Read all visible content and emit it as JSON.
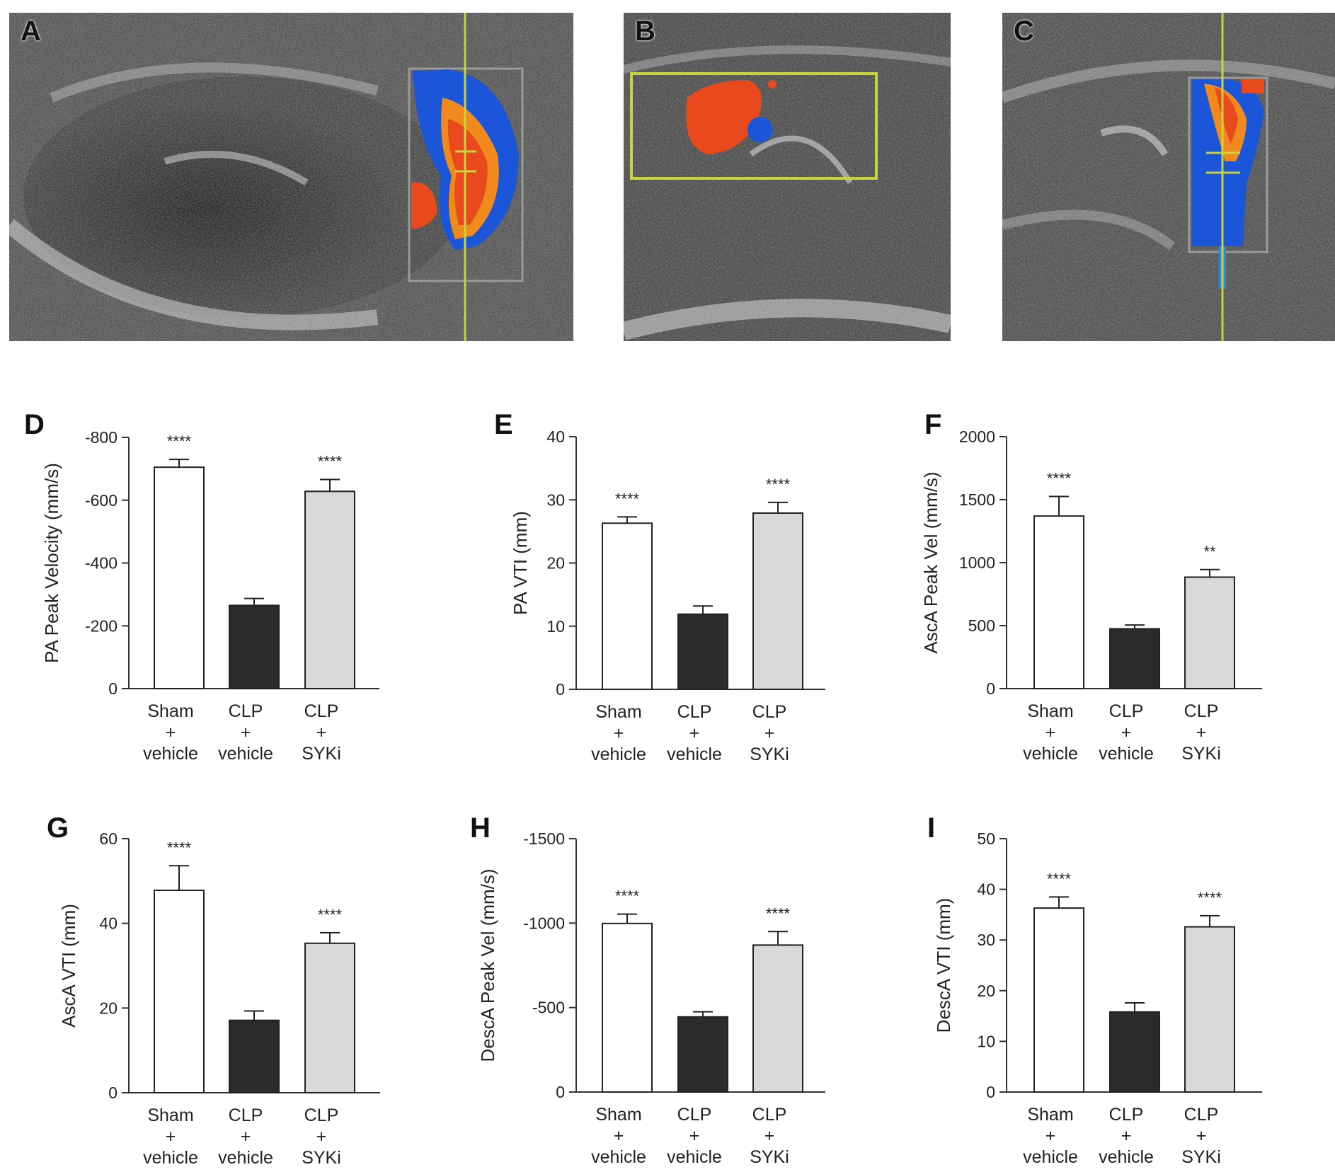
{
  "image_panels": [
    {
      "letter": "A"
    },
    {
      "letter": "B"
    },
    {
      "letter": "C"
    }
  ],
  "colors": {
    "sham": "#ffffff",
    "clp_vehicle": "#2b2b2b",
    "clp_syki": "#d9d9d9",
    "axis": "#333333",
    "guide_line": "#c8d43a",
    "doppler_red": "#e8491d",
    "doppler_orange": "#f08a1c",
    "doppler_blue": "#1c56d8"
  },
  "categories": [
    {
      "line1": "Sham",
      "line2": "+",
      "line3": "vehicle"
    },
    {
      "line1": "CLP",
      "line2": "+",
      "line3": "vehicle"
    },
    {
      "line1": "CLP",
      "line2": "+",
      "line3": "SYKi"
    }
  ],
  "chart_data": [
    {
      "letter": "D",
      "type": "bar",
      "ylabel": "PA Peak Velocity (mm/s)",
      "ticks": [
        0,
        -200,
        -400,
        -600,
        -800
      ],
      "tick_labels": [
        "0",
        "-200",
        "-400",
        "-600",
        "-800"
      ],
      "ylim": [
        0,
        -800
      ],
      "values": [
        -705,
        -265,
        -628
      ],
      "errors": [
        25,
        22,
        38
      ],
      "significance": [
        "****",
        "",
        "****"
      ]
    },
    {
      "letter": "E",
      "type": "bar",
      "ylabel": "PA VTI (mm)",
      "ticks": [
        0,
        10,
        20,
        30,
        40
      ],
      "tick_labels": [
        "0",
        "10",
        "20",
        "30",
        "40"
      ],
      "ylim": [
        0,
        40
      ],
      "values": [
        26.3,
        11.9,
        27.9
      ],
      "errors": [
        1.0,
        1.3,
        1.7
      ],
      "significance": [
        "****",
        "",
        "****"
      ]
    },
    {
      "letter": "F",
      "type": "bar",
      "ylabel": "AscA Peak Vel (mm/s)",
      "ticks": [
        0,
        500,
        1000,
        1500,
        2000
      ],
      "tick_labels": [
        "0",
        "500",
        "1000",
        "1500",
        "2000"
      ],
      "ylim": [
        0,
        2000
      ],
      "values": [
        1370,
        475,
        885
      ],
      "errors": [
        155,
        30,
        60
      ],
      "significance": [
        "****",
        "",
        "**"
      ]
    },
    {
      "letter": "G",
      "type": "bar",
      "ylabel": "AscA VTI (mm)",
      "ticks": [
        0,
        20,
        40,
        60
      ],
      "tick_labels": [
        "0",
        "20",
        "40",
        "60"
      ],
      "ylim": [
        0,
        60
      ],
      "values": [
        47.8,
        17.1,
        35.3
      ],
      "errors": [
        5.8,
        2.2,
        2.5
      ],
      "significance": [
        "****",
        "",
        "****"
      ]
    },
    {
      "letter": "H",
      "type": "bar",
      "ylabel": "DescA Peak Vel (mm/s)",
      "ticks": [
        0,
        -500,
        -1000,
        -1500
      ],
      "tick_labels": [
        "0",
        "-500",
        "-1000",
        "-1500"
      ],
      "ylim": [
        0,
        -1500
      ],
      "values": [
        -998,
        -445,
        -870
      ],
      "errors": [
        55,
        30,
        80
      ],
      "significance": [
        "****",
        "",
        "****"
      ]
    },
    {
      "letter": "I",
      "type": "bar",
      "ylabel": "DescA VTI (mm)",
      "ticks": [
        0,
        10,
        20,
        30,
        40,
        50
      ],
      "tick_labels": [
        "0",
        "10",
        "20",
        "30",
        "40",
        "50"
      ],
      "ylim": [
        0,
        50
      ],
      "values": [
        36.3,
        15.8,
        32.6
      ],
      "errors": [
        2.2,
        1.8,
        2.2
      ],
      "significance": [
        "****",
        "",
        "****"
      ]
    }
  ]
}
